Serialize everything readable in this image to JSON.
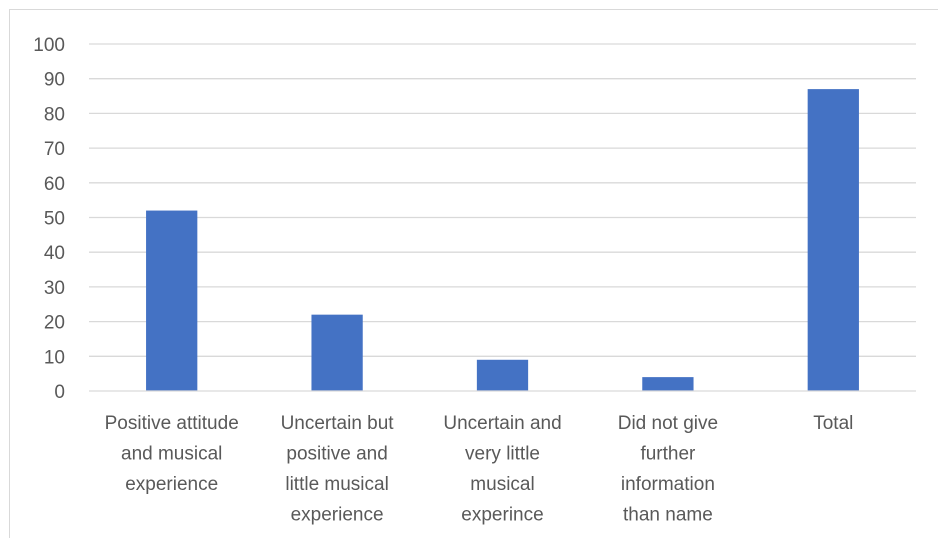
{
  "chart_data": {
    "type": "bar",
    "title": "",
    "xlabel": "",
    "ylabel": "",
    "ylim": [
      0,
      100
    ],
    "ytick_step": 10,
    "ytick_labels": [
      "0",
      "10",
      "20",
      "30",
      "40",
      "50",
      "60",
      "70",
      "80",
      "90",
      "100"
    ],
    "grid": true,
    "bar_color": "#4472c4",
    "grid_color": "#d9d9d9",
    "categories": [
      [
        "Positive attitude",
        "and musical",
        "experience"
      ],
      [
        "Uncertain but",
        "positive and",
        "little musical",
        "experience"
      ],
      [
        "Uncertain and",
        "very little",
        "musical",
        "experince"
      ],
      [
        "Did not give",
        "further",
        "information",
        "than name"
      ],
      [
        "Total"
      ]
    ],
    "values": [
      52,
      22,
      9,
      4,
      87
    ]
  }
}
